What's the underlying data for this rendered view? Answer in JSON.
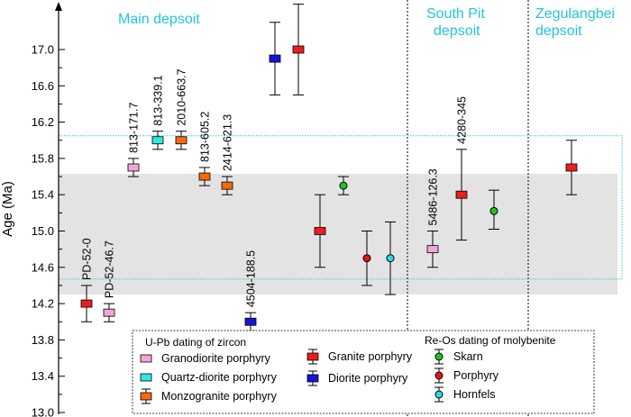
{
  "chart_data": {
    "type": "scatter",
    "ylabel": "Age (Ma)",
    "ylim": [
      13.0,
      17.6
    ],
    "yticks": [
      "13.0",
      "13.4",
      "13.8",
      "14.2",
      "14.6",
      "15.0",
      "15.4",
      "15.8",
      "16.2",
      "16.6",
      "17.0"
    ],
    "ytick_values": [
      13.0,
      13.4,
      13.8,
      14.2,
      14.6,
      15.0,
      15.4,
      15.8,
      16.2,
      16.6,
      17.0
    ],
    "grid": false,
    "sections": [
      {
        "name": "Main depsoit"
      },
      {
        "name": "South Pit depsoit"
      },
      {
        "name": "Zegulangbei depsoit"
      }
    ],
    "shaded_band": {
      "low": 14.3,
      "high": 15.63,
      "color": "#e3e3e3"
    },
    "dotted_band": {
      "low": 14.47,
      "high": 16.05,
      "color": "#33c4dc"
    },
    "points": [
      {
        "label": "PD-52-0",
        "age": 14.2,
        "low": 14.0,
        "high": 14.4,
        "type": "Granite porphyry"
      },
      {
        "label": "PD-52-46.7",
        "age": 14.1,
        "low": 14.0,
        "high": 14.2,
        "type": "Granodiorite porphyry"
      },
      {
        "label": "813-171.7",
        "age": 15.7,
        "low": 15.6,
        "high": 15.8,
        "type": "Granodiorite porphyry"
      },
      {
        "label": "813-339.1",
        "age": 16.0,
        "low": 15.9,
        "high": 16.1,
        "type": "Quartz-diorite porphyry"
      },
      {
        "label": "2010-663.7",
        "age": 16.0,
        "low": 15.9,
        "high": 16.1,
        "type": "Monzogranite porphyry"
      },
      {
        "label": "813-605.2",
        "age": 15.6,
        "low": 15.5,
        "high": 15.7,
        "type": "Monzogranite porphyry"
      },
      {
        "label": "2414-621.3",
        "age": 15.5,
        "low": 15.4,
        "high": 15.6,
        "type": "Monzogranite porphyry"
      },
      {
        "label": "4504-188.5",
        "age": 14.0,
        "low": 13.9,
        "high": 14.1,
        "type": "Diorite porphyry"
      },
      {
        "label": "",
        "age": 16.9,
        "low": 16.5,
        "high": 17.3,
        "type": "Diorite porphyry"
      },
      {
        "label": "",
        "age": 17.0,
        "low": 16.5,
        "high": 17.5,
        "type": "Granite porphyry"
      },
      {
        "label": "",
        "age": 15.0,
        "low": 14.6,
        "high": 15.4,
        "type": "Granite porphyry"
      },
      {
        "label": "",
        "age": 15.5,
        "low": 15.4,
        "high": 15.6,
        "type": "Skarn"
      },
      {
        "label": "",
        "age": 14.7,
        "low": 14.4,
        "high": 15.0,
        "type": "Porphyry"
      },
      {
        "label": "",
        "age": 14.7,
        "low": 14.3,
        "high": 15.1,
        "type": "Hornfels"
      },
      {
        "label": "5486-126.3",
        "age": 14.8,
        "low": 14.6,
        "high": 15.0,
        "type": "Granodiorite porphyry"
      },
      {
        "label": "4280-345",
        "age": 15.4,
        "low": 14.9,
        "high": 15.9,
        "type": "Granite porphyry"
      },
      {
        "label": "",
        "age": 15.22,
        "low": 15.02,
        "high": 15.45,
        "type": "Skarn"
      },
      {
        "label": "",
        "age": 15.7,
        "low": 15.4,
        "high": 16.0,
        "type": "Granite porphyry"
      }
    ],
    "legend": {
      "placement": "bottom",
      "group_upb": "U-Pb dating of zircon",
      "group_reos": "Re-Os dating of molybenite",
      "types": [
        {
          "name": "Granodiorite porphyry",
          "marker": "square",
          "color": "#f2a6d6"
        },
        {
          "name": "Quartz-diorite porphyry",
          "marker": "square",
          "color": "#2ee6e6"
        },
        {
          "name": "Monzogranite porphyry",
          "marker": "square",
          "color": "#f26b0f"
        },
        {
          "name": "Granite porphyry",
          "marker": "square",
          "color": "#ee1c1c"
        },
        {
          "name": "Diorite porphyry",
          "marker": "square",
          "color": "#1515d6"
        },
        {
          "name": "Skarn",
          "marker": "circle",
          "color": "#22c41e"
        },
        {
          "name": "Porphyry",
          "marker": "circle",
          "color": "#e8141c"
        },
        {
          "name": "Hornfels",
          "marker": "circle",
          "color": "#33d6e6"
        }
      ]
    }
  }
}
